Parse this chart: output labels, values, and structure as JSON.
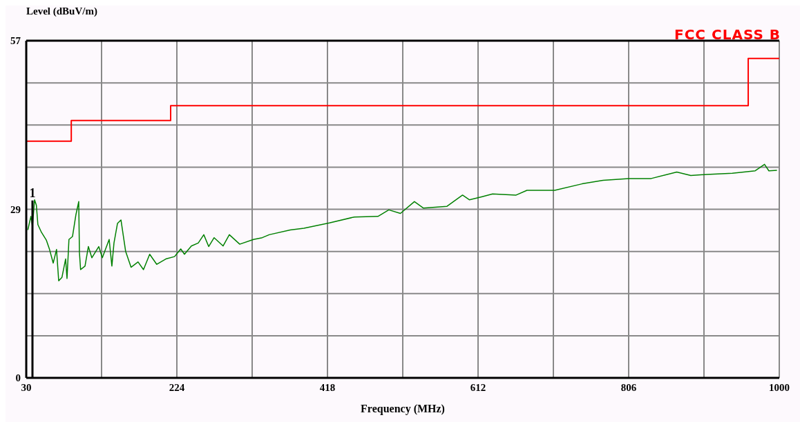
{
  "chart_data": {
    "type": "line",
    "xlabel": "Frequency (MHz)",
    "ylabel": "Level (dBuV/m)",
    "xlim": [
      30,
      1000
    ],
    "ylim": [
      0,
      57
    ],
    "xticks": [
      30,
      {
        "value": 127,
        "label": null
      },
      224,
      {
        "value": 321,
        "label": null
      },
      418,
      {
        "value": 515,
        "label": null
      },
      612,
      {
        "value": 709,
        "label": null
      },
      806,
      {
        "value": 903,
        "label": null
      },
      1000
    ],
    "yticks": [
      0,
      {
        "value": 7.125,
        "label": null
      },
      {
        "value": 14.25,
        "label": null
      },
      {
        "value": 21.375,
        "label": null
      },
      {
        "value": 28.5,
        "label": "29"
      },
      {
        "value": 35.625,
        "label": null
      },
      {
        "value": 42.75,
        "label": null
      },
      {
        "value": 49.875,
        "label": null
      },
      57
    ],
    "grid": true,
    "legend": "top right",
    "marker": "none",
    "line_style": "solid",
    "annotations": [
      {
        "text": "1",
        "x": 38,
        "y": 30
      }
    ],
    "series": [
      {
        "name": "FCC CLASS B",
        "type": "step",
        "color": "#ff0000",
        "x": [
          30,
          88,
          216,
          960,
          1000
        ],
        "values": [
          40,
          43.5,
          46,
          54,
          54
        ]
      },
      {
        "type": "line",
        "color": "#008000",
        "x": [
          32,
          36,
          38,
          40.7,
          43,
          45,
          49.6,
          55.8,
          60,
          64.7,
          69,
          71.8,
          76,
          80.7,
          82.5,
          85,
          89.6,
          94,
          97.6,
          98.5,
          100,
          105.7,
          110,
          114.5,
          123.4,
          128,
          136.8,
          140.3,
          143,
          147.5,
          152,
          158,
          165,
          174,
          181,
          189,
          198,
          209.8,
          221,
          229,
          233.8,
          242.7,
          251.6,
          258.7,
          265,
          272,
          283.6,
          291.6,
          305,
          322.8,
          334,
          343,
          370,
          387.7,
          420.6,
          452.7,
          483,
          497,
          512,
          530,
          541.7,
          572,
          592,
          601,
          616.5,
          630.7,
          661,
          675,
          710.8,
          746,
          773,
          806,
          835,
          868,
          886,
          906.6,
          939.5,
          969,
          981,
          986.6,
          997
        ],
        "values": [
          25.0,
          27.3,
          25.6,
          30.1,
          29.2,
          25.9,
          24.6,
          23.3,
          21.7,
          19.4,
          21.7,
          16.4,
          17.0,
          20.1,
          16.8,
          23.4,
          23.9,
          27.6,
          29.8,
          21.2,
          18.3,
          18.9,
          22.2,
          20.3,
          22.2,
          20.3,
          23.4,
          18.9,
          22.8,
          26.1,
          26.7,
          21.4,
          18.7,
          19.6,
          18.3,
          20.9,
          19.2,
          20.1,
          20.5,
          21.8,
          20.9,
          22.3,
          22.8,
          24.2,
          22.2,
          23.7,
          22.3,
          24.2,
          22.6,
          23.4,
          23.7,
          24.2,
          25.0,
          25.3,
          26.2,
          27.2,
          27.3,
          28.4,
          27.8,
          29.8,
          28.7,
          29.0,
          30.9,
          30.1,
          30.6,
          31.1,
          30.9,
          31.7,
          31.7,
          32.8,
          33.4,
          33.7,
          33.7,
          34.8,
          34.2,
          34.4,
          34.6,
          35.0,
          36.1,
          35.0,
          35.1
        ]
      }
    ]
  }
}
